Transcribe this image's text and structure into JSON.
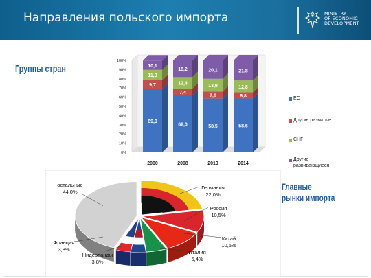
{
  "header": {
    "title": "Направления польского импорта",
    "ministry_lines": [
      "MINISTRY",
      "OF ECONOMIC",
      "DEVELOPMENT"
    ]
  },
  "section_labels": {
    "country_groups": "Группы стран",
    "main_markets_line1": "Главные",
    "main_markets_line2": "рынки импорта"
  },
  "colors": {
    "header": "#1d7fb0",
    "eu": "#3f73c2",
    "other_developed": "#c0504d",
    "cis": "#9bbb59",
    "other_developing": "#7e5ca7",
    "label_blue": "#1e5fa0"
  },
  "chart_data": [
    {
      "type": "bar",
      "stacked": true,
      "categories": [
        "2000",
        "2008",
        "2013",
        "2014"
      ],
      "series": [
        {
          "name": "ЕС",
          "values": [
            69.0,
            62.0,
            58.5,
            58.6
          ],
          "labels": [
            "69,0",
            "62,0",
            "58,5",
            "58,6"
          ],
          "color": "#3f73c2"
        },
        {
          "name": "Другие развитые",
          "values": [
            9.7,
            7.4,
            7.6,
            6.8
          ],
          "labels": [
            "9,7",
            "7,4",
            "7,6",
            "6,8"
          ],
          "color": "#c0504d"
        },
        {
          "name": "СНГ",
          "values": [
            11.0,
            12.4,
            13.9,
            12.8
          ],
          "labels": [
            "11,0",
            "12,4",
            "13,9",
            "12,8"
          ],
          "color": "#9bbb59"
        },
        {
          "name": "Другие развивающиеся",
          "values": [
            10.1,
            18.2,
            20.1,
            21.8
          ],
          "labels": [
            "10,1",
            "18,2",
            "20,1",
            "21,8"
          ],
          "color": "#7e5ca7"
        }
      ],
      "yticks": [
        "0%",
        "10%",
        "20%",
        "30%",
        "40%",
        "50%",
        "60%",
        "70%",
        "80%",
        "90%",
        "100%"
      ],
      "ylim": [
        0,
        100
      ],
      "legend_labels": [
        "ЕС",
        "Другие развитые",
        "СНГ",
        "Другие",
        "развивающиеся"
      ],
      "legend_position": "right",
      "grid": false
    },
    {
      "type": "pie",
      "categories": [
        "Германия",
        "Россия",
        "Китай",
        "Италия",
        "Нидерланды",
        "Франция",
        "остальные"
      ],
      "values": [
        22.0,
        10.5,
        10.5,
        5.4,
        3.8,
        3.8,
        44.0
      ],
      "labels": [
        "22,0%",
        "10,5%",
        "10,5%",
        "5,4%",
        "3,8%",
        "3,8%",
        "44,0%"
      ],
      "colors": [
        "#111111",
        "#d8262c",
        "#e62817",
        "#18914a",
        "#25409a",
        "#233c94",
        "#d2d2d2"
      ],
      "legend_position": "none"
    }
  ]
}
